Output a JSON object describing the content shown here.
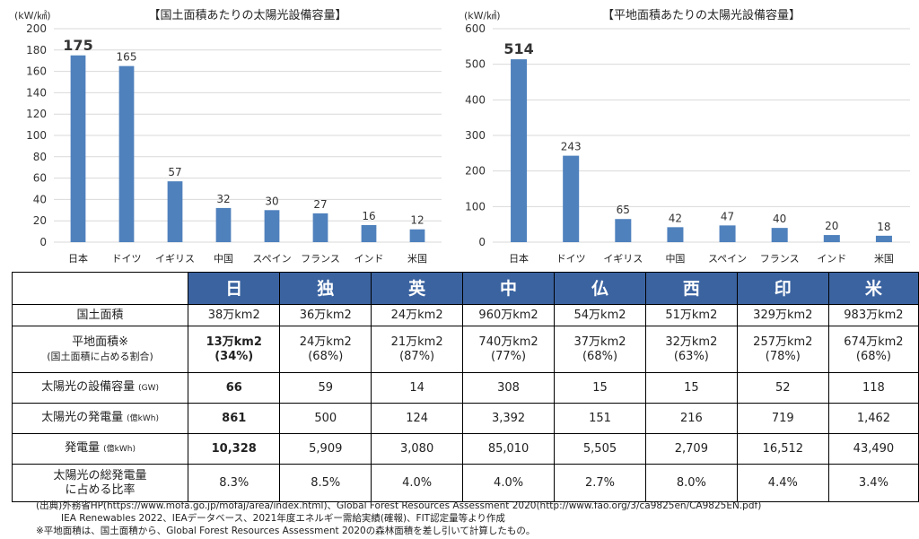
{
  "colors": {
    "bar": "#4f81bd",
    "header_bg": "#3b63a0",
    "header_text": "#ffffff",
    "grid": "#d9d9d9"
  },
  "chart_data": [
    {
      "type": "bar",
      "title": "【国土面積あたりの太陽光設備容量】",
      "unit_label": "(kW/㎢)",
      "categories": [
        "日本",
        "ドイツ",
        "イギリス",
        "中国",
        "スペイン",
        "フランス",
        "インド",
        "米国"
      ],
      "values": [
        175,
        165,
        57,
        32,
        30,
        27,
        16,
        12
      ],
      "yticks": [
        0,
        20,
        40,
        60,
        80,
        100,
        120,
        140,
        160,
        180,
        200
      ],
      "ylim": [
        0,
        200
      ],
      "grid": true,
      "highlight_first_label": true
    },
    {
      "type": "bar",
      "title": "【平地面積あたりの太陽光設備容量】",
      "unit_label": "(kW/㎢)",
      "categories": [
        "日本",
        "ドイツ",
        "イギリス",
        "中国",
        "スペイン",
        "フランス",
        "インド",
        "米国"
      ],
      "values": [
        514,
        243,
        65,
        42,
        47,
        40,
        20,
        18
      ],
      "yticks": [
        0,
        100,
        200,
        300,
        400,
        500,
        600
      ],
      "ylim": [
        0,
        600
      ],
      "grid": true,
      "highlight_first_label": true
    }
  ],
  "table": {
    "countries": [
      "日",
      "独",
      "英",
      "中",
      "仏",
      "西",
      "印",
      "米"
    ],
    "rows": [
      {
        "label": "国土面積",
        "unit": "",
        "sublabel": "",
        "cells": [
          "38万km2",
          "36万km2",
          "24万km2",
          "960万km2",
          "54万km2",
          "51万km2",
          "329万km2",
          "983万km2"
        ],
        "subcells": []
      },
      {
        "label": "平地面積※",
        "unit": "",
        "sublabel": "(国土面積に占める割合)",
        "cells": [
          "13万km2",
          "24万km2",
          "21万km2",
          "740万km2",
          "37万km2",
          "32万km2",
          "257万km2",
          "674万km2"
        ],
        "subcells": [
          "(34%)",
          "(68%)",
          "(87%)",
          "(77%)",
          "(68%)",
          "(63%)",
          "(78%)",
          "(68%)"
        ]
      },
      {
        "label": "太陽光の設備容量",
        "unit": "(GW)",
        "sublabel": "",
        "cells": [
          "66",
          "59",
          "14",
          "308",
          "15",
          "15",
          "52",
          "118"
        ],
        "subcells": []
      },
      {
        "label": "太陽光の発電量",
        "unit": "(億kWh)",
        "sublabel": "",
        "cells": [
          "861",
          "500",
          "124",
          "3,392",
          "151",
          "216",
          "719",
          "1,462"
        ],
        "subcells": []
      },
      {
        "label": "発電量",
        "unit": "(億kWh)",
        "sublabel": "",
        "cells": [
          "10,328",
          "5,909",
          "3,080",
          "85,010",
          "5,505",
          "2,709",
          "16,512",
          "43,490"
        ],
        "subcells": []
      },
      {
        "label": "太陽光の総発電量",
        "unit": "",
        "sublabel": "に占める比率",
        "cells": [
          "8.3%",
          "8.5%",
          "4.0%",
          "4.0%",
          "2.7%",
          "8.0%",
          "4.4%",
          "3.4%"
        ],
        "subcells": []
      }
    ]
  },
  "source_notes": {
    "line1": "(出典)外務省HP(https://www.mofa.go.jp/mofaj/area/index.html)、Global Forest Resources Assessment 2020(http://www.fao.org/3/ca9825en/CA9825EN.pdf)",
    "line2": "IEA Renewables 2022、IEAデータベース、2021年度エネルギー需給実績(確報)、FIT認定量等より作成",
    "line3": "※平地面積は、国土面積から、Global Forest Resources Assessment 2020の森林面積を差し引いて計算したもの。"
  }
}
